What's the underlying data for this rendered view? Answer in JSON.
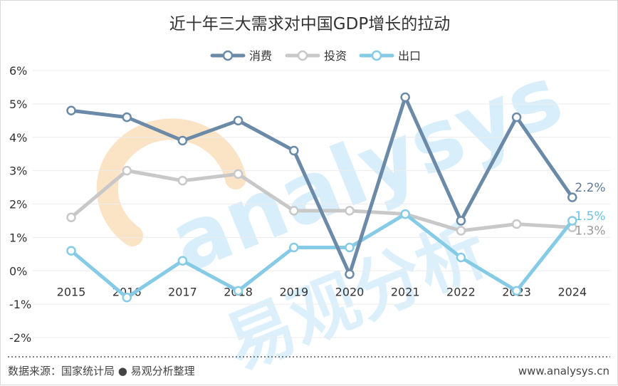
{
  "chart_data": {
    "type": "line",
    "title": "近十年三大需求对中国GDP增长的拉动",
    "categories": [
      "2015",
      "2016",
      "2017",
      "2018",
      "2019",
      "2020",
      "2021",
      "2022",
      "2023",
      "2024"
    ],
    "series": [
      {
        "name": "消费",
        "color": "#6b8aa8",
        "values": [
          4.8,
          4.6,
          3.9,
          4.5,
          3.6,
          -0.1,
          5.2,
          1.5,
          4.6,
          2.2
        ],
        "end_label": "2.2%"
      },
      {
        "name": "投资",
        "color": "#c8c8c8",
        "values": [
          1.6,
          3.0,
          2.7,
          2.9,
          1.8,
          1.8,
          1.7,
          1.2,
          1.4,
          1.3
        ],
        "end_label": "1.3%"
      },
      {
        "name": "出口",
        "color": "#86cbe6",
        "values": [
          0.6,
          -0.8,
          0.3,
          -0.6,
          0.7,
          0.7,
          1.7,
          0.4,
          -0.6,
          1.5
        ],
        "end_label": "1.5%"
      }
    ],
    "ylim": [
      -2,
      6
    ],
    "yticks": [
      {
        "value": 6,
        "label": "6%"
      },
      {
        "value": 5,
        "label": "5%"
      },
      {
        "value": 4,
        "label": "4%"
      },
      {
        "value": 3,
        "label": "3%"
      },
      {
        "value": 2,
        "label": "2%"
      },
      {
        "value": 1,
        "label": "1%"
      },
      {
        "value": 0,
        "label": "0%"
      },
      {
        "value": -1,
        "label": "-1%"
      },
      {
        "value": -2,
        "label": "-2%"
      }
    ],
    "grid": true,
    "legend": "top-center",
    "end_label_colors": {
      "消费": "#5b7a98",
      "投资": "#9a9a9a",
      "出口": "#6cc3e4"
    }
  },
  "footer": {
    "source": "数据来源：国家统计局 ● 易观分析整理",
    "website": "www.analysys.cn"
  },
  "watermark": {
    "text_en": "analysys",
    "text_cn": "易观分析"
  }
}
